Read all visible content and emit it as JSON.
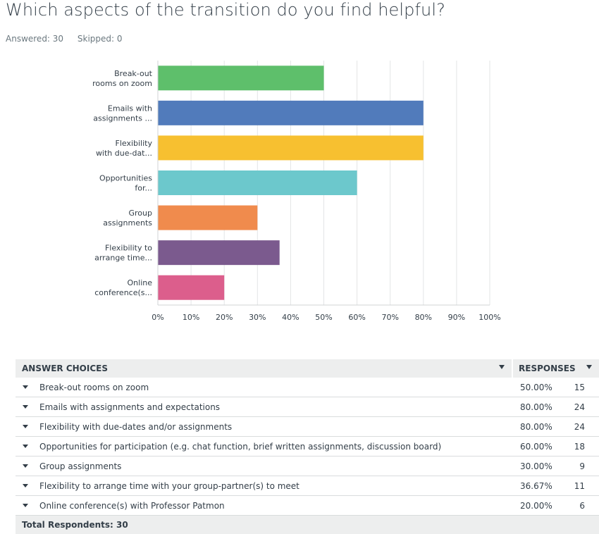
{
  "question": {
    "title": "Which aspects of the transition do you find helpful?",
    "answered": "Answered: 30",
    "skipped": "Skipped: 0"
  },
  "chart_data": {
    "type": "bar",
    "orientation": "horizontal",
    "categories": [
      [
        "Break-out",
        "rooms on zoom"
      ],
      [
        "Emails with",
        "assignments ..."
      ],
      [
        "Flexibility",
        "with due-dat..."
      ],
      [
        "Opportunities",
        "for..."
      ],
      [
        "Group",
        "assignments"
      ],
      [
        "Flexibility to",
        "arrange time..."
      ],
      [
        "Online",
        "conference(s..."
      ]
    ],
    "values": [
      50,
      80,
      80,
      60,
      30,
      36.67,
      20
    ],
    "colors": [
      "#5ebf6b",
      "#517bbb",
      "#f7c030",
      "#6cc8cc",
      "#f08b4d",
      "#7b5a8e",
      "#dc5e8c"
    ],
    "xlim": [
      0,
      100
    ],
    "xticks": [
      "0%",
      "10%",
      "20%",
      "30%",
      "40%",
      "50%",
      "60%",
      "70%",
      "80%",
      "90%",
      "100%"
    ],
    "grid": true,
    "grid_color": "#e3e5e6"
  },
  "table": {
    "header_choice": "ANSWER CHOICES",
    "header_responses": "RESPONSES",
    "rows": [
      {
        "choice": "Break-out rooms on zoom",
        "pct": "50.00%",
        "count": "15"
      },
      {
        "choice": "Emails with assignments and expectations",
        "pct": "80.00%",
        "count": "24"
      },
      {
        "choice": "Flexibility with due-dates and/or assignments",
        "pct": "80.00%",
        "count": "24"
      },
      {
        "choice": "Opportunities for participation (e.g. chat function, brief written assignments, discussion board)",
        "pct": "60.00%",
        "count": "18"
      },
      {
        "choice": "Group assignments",
        "pct": "30.00%",
        "count": "9"
      },
      {
        "choice": "Flexibility to arrange time with your group-partner(s) to meet",
        "pct": "36.67%",
        "count": "11"
      },
      {
        "choice": "Online conference(s) with Professor Patmon",
        "pct": "20.00%",
        "count": "6"
      }
    ],
    "footer": "Total Respondents: 30"
  }
}
